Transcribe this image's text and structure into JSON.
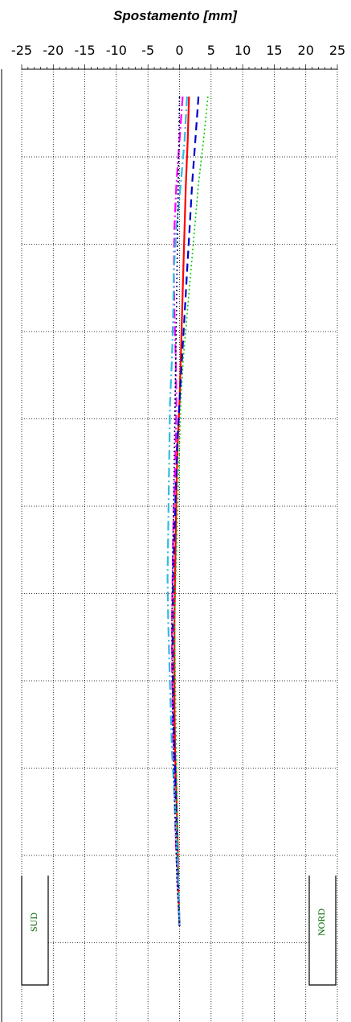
{
  "chart_data": {
    "type": "line",
    "orientation": "vertical-profile",
    "title": "Spostamento [mm]",
    "xlabel": "Spostamento [mm]",
    "xlim": [
      -25,
      25
    ],
    "xticks": [
      "-25",
      "-20",
      "-15",
      "-10",
      "-5",
      "0",
      "5",
      "10",
      "15",
      "20",
      "25"
    ],
    "grid": true,
    "y_levels": 11,
    "series": [
      {
        "color": "#ff0000",
        "dash": "solid",
        "points": [
          [
            1.5,
            0
          ],
          [
            1.3,
            0.5
          ],
          [
            1.0,
            1
          ],
          [
            0.8,
            1.5
          ],
          [
            0.6,
            2
          ],
          [
            0.4,
            2.5
          ],
          [
            0.2,
            3
          ],
          [
            0,
            3.5
          ],
          [
            -0.3,
            4
          ],
          [
            -0.5,
            4.5
          ],
          [
            -0.6,
            5
          ],
          [
            -0.7,
            5.5
          ],
          [
            -0.8,
            6
          ],
          [
            -0.8,
            6.5
          ],
          [
            -0.8,
            7
          ],
          [
            -0.7,
            7.5
          ],
          [
            -0.5,
            8
          ],
          [
            -0.3,
            8.5
          ],
          [
            -0.2,
            9
          ],
          [
            0,
            9.5
          ]
        ]
      },
      {
        "color": "#0000cc",
        "dash": "longdash",
        "points": [
          [
            3.0,
            0
          ],
          [
            2.5,
            0.5
          ],
          [
            2.0,
            1
          ],
          [
            1.6,
            1.5
          ],
          [
            1.2,
            2
          ],
          [
            0.8,
            2.5
          ],
          [
            0.4,
            3
          ],
          [
            0,
            3.5
          ],
          [
            -0.4,
            4
          ],
          [
            -0.6,
            4.5
          ],
          [
            -0.8,
            5
          ],
          [
            -1.0,
            5.5
          ],
          [
            -1.1,
            6
          ],
          [
            -1.1,
            6.5
          ],
          [
            -1.0,
            7
          ],
          [
            -0.8,
            7.5
          ],
          [
            -0.6,
            8
          ],
          [
            -0.4,
            8.5
          ],
          [
            -0.2,
            9
          ],
          [
            0,
            9.5
          ]
        ]
      },
      {
        "color": "#00cc00",
        "dash": "dotted",
        "points": [
          [
            4.5,
            0
          ],
          [
            3.8,
            0.5
          ],
          [
            3.0,
            1
          ],
          [
            2.4,
            1.5
          ],
          [
            1.8,
            2
          ],
          [
            1.2,
            2.5
          ],
          [
            0.6,
            3
          ],
          [
            0.2,
            3.5
          ],
          [
            0,
            4
          ],
          [
            -0.2,
            4.5
          ],
          [
            -0.4,
            5
          ],
          [
            -0.6,
            5.5
          ],
          [
            -0.8,
            6
          ],
          [
            -0.7,
            6.5
          ],
          [
            -0.6,
            7
          ],
          [
            -0.5,
            7.5
          ],
          [
            -0.4,
            8
          ],
          [
            -0.3,
            8.5
          ],
          [
            -0.2,
            9
          ],
          [
            0,
            9.5
          ]
        ]
      },
      {
        "color": "#ff00ff",
        "dash": "dashdot",
        "points": [
          [
            0.5,
            0
          ],
          [
            0.0,
            0.5
          ],
          [
            -0.5,
            1
          ],
          [
            -0.8,
            1.5
          ],
          [
            -0.9,
            2
          ],
          [
            -0.8,
            2.5
          ],
          [
            -0.6,
            3
          ],
          [
            -0.5,
            3.5
          ],
          [
            -0.6,
            4
          ],
          [
            -0.8,
            4.5
          ],
          [
            -1.0,
            5
          ],
          [
            -1.1,
            5.5
          ],
          [
            -1.2,
            6
          ],
          [
            -1.2,
            6.5
          ],
          [
            -1.1,
            7
          ],
          [
            -1.0,
            7.5
          ],
          [
            -0.8,
            8
          ],
          [
            -0.6,
            8.5
          ],
          [
            -0.3,
            9
          ],
          [
            0,
            9.5
          ]
        ]
      },
      {
        "color": "#33bbdd",
        "dash": "dashdot",
        "points": [
          [
            1.2,
            0
          ],
          [
            0.8,
            0.5
          ],
          [
            0.2,
            1
          ],
          [
            -0.5,
            1.5
          ],
          [
            -0.9,
            2
          ],
          [
            -1.0,
            2.5
          ],
          [
            -1.2,
            3
          ],
          [
            -1.5,
            3.5
          ],
          [
            -1.6,
            4
          ],
          [
            -1.7,
            4.5
          ],
          [
            -1.8,
            5
          ],
          [
            -1.9,
            5.5
          ],
          [
            -1.8,
            6
          ],
          [
            -1.6,
            6.5
          ],
          [
            -1.4,
            7
          ],
          [
            -1.2,
            7.5
          ],
          [
            -0.8,
            8
          ],
          [
            -0.5,
            8.5
          ],
          [
            -0.2,
            9
          ],
          [
            0,
            9.5
          ]
        ]
      },
      {
        "color": "#000066",
        "dash": "dotted",
        "points": [
          [
            0,
            0
          ],
          [
            -0.2,
            1
          ],
          [
            -0.4,
            2
          ],
          [
            -0.6,
            3
          ],
          [
            -0.8,
            4
          ],
          [
            -1.0,
            5
          ],
          [
            -1.2,
            6
          ],
          [
            -1.1,
            7
          ],
          [
            -0.8,
            8
          ],
          [
            -0.4,
            9
          ],
          [
            0,
            9.5
          ]
        ]
      }
    ],
    "annotations": [
      {
        "side": "left",
        "text": "SUD",
        "color": "#006600"
      },
      {
        "side": "right",
        "text": "NORD",
        "color": "#006600"
      }
    ]
  }
}
